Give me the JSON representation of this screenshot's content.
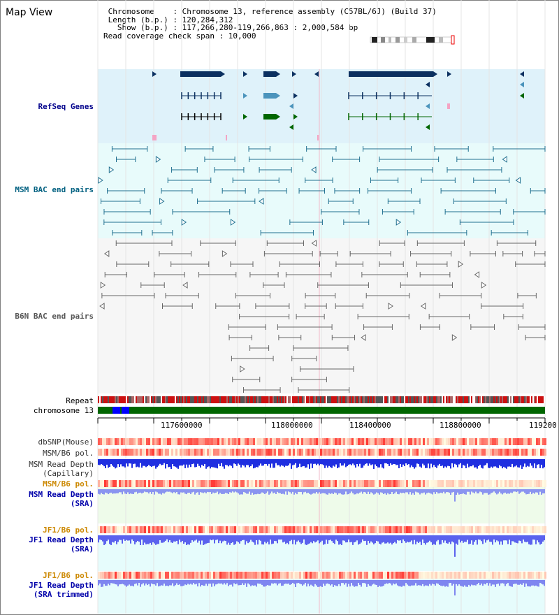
{
  "title": "Map View",
  "info": {
    "line1": " Chromosome    : Chromosome 13, reference assembly (C57BL/6J) (Build 37)",
    "line2": " Length (b.p.) : 120,284,312",
    "line3": "   Show (b.p.) : 117,266,280-119,266,863 : 2,000,584 bp",
    "line4": "Read coverage check span : 10,000"
  },
  "tracks": {
    "refseq": "RefSeq Genes",
    "msm_bac": "MSM BAC end pairs",
    "b6n_bac": "B6N BAC end pairs",
    "repeat": "Repeat",
    "chromosome": "chromosome 13",
    "dbsnp": "dbSNP(Mouse)",
    "msm_b6_pol": "MSM/B6 pol.",
    "msm_read_depth_cap": "MSM Read Depth",
    "capillary": "(Capillary)",
    "msm_b6_pol2": "MSM/B6 pol.",
    "msm_read_depth_sra": "MSM Read Depth",
    "sra": "(SRA)",
    "jf1_b6_pol": "JF1/B6 pol.",
    "jf1_read_depth": "JF1 Read Depth",
    "sra2": "(SRA)",
    "jf1_b6_pol2": "JF1/B6 pol.",
    "jf1_read_depth2": "JF1 Read Depth",
    "sra_trimmed": "(SRA trimmed)"
  },
  "axis": {
    "ticks": [
      "117600000",
      "118000000",
      "118400000",
      "118800000",
      "119200"
    ]
  },
  "colors": {
    "refseq_bg": "#dff2fa",
    "msm_bg": "#e8fbfb",
    "b6n_bg": "#f3f3f3",
    "gene_dark": "#0b3060",
    "gene_light": "#4b94bc",
    "gene_green": "#006600",
    "chrom_green": "#006600",
    "chrom_blue": "#0000ff",
    "label_blue": "#00008b",
    "label_teal": "#006080",
    "label_orange": "#cc8800",
    "label_gray": "#555555"
  }
}
